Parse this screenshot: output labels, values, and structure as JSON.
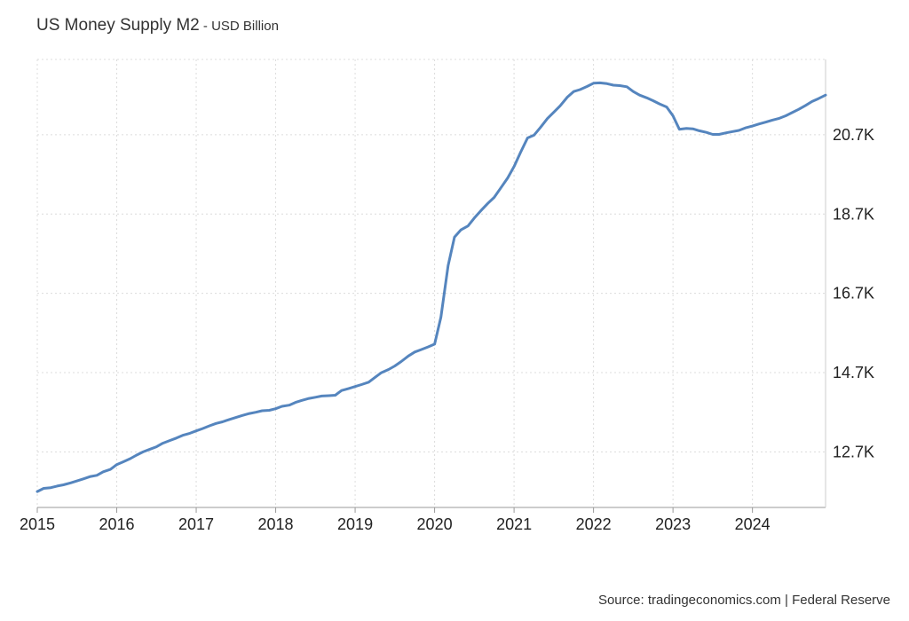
{
  "chart_data": {
    "type": "line",
    "title": "US Money Supply M2",
    "subtitle": "USD Billion",
    "title_separator": " - ",
    "source": "Source: tradingeconomics.com | Federal Reserve",
    "x_ticks": [
      "2015",
      "2016",
      "2017",
      "2018",
      "2019",
      "2020",
      "2021",
      "2022",
      "2023",
      "2024"
    ],
    "y_ticks": [
      "12.7K",
      "14.7K",
      "16.7K",
      "18.7K",
      "20.7K"
    ],
    "y_tick_values": [
      12700,
      14700,
      16700,
      18700,
      20700
    ],
    "xlim": [
      2015.0,
      2024.92
    ],
    "ylim": [
      11300,
      22600
    ],
    "grid": true,
    "y_axis_side": "right",
    "line_color": "#5585be",
    "series": [
      {
        "name": "",
        "x": [
          2015.0,
          2015.08,
          2015.17,
          2015.25,
          2015.33,
          2015.42,
          2015.5,
          2015.58,
          2015.67,
          2015.75,
          2015.83,
          2015.92,
          2016.0,
          2016.08,
          2016.17,
          2016.25,
          2016.33,
          2016.42,
          2016.5,
          2016.58,
          2016.67,
          2016.75,
          2016.83,
          2016.92,
          2017.0,
          2017.08,
          2017.17,
          2017.25,
          2017.33,
          2017.42,
          2017.5,
          2017.58,
          2017.67,
          2017.75,
          2017.83,
          2017.92,
          2018.0,
          2018.08,
          2018.17,
          2018.25,
          2018.33,
          2018.42,
          2018.5,
          2018.58,
          2018.67,
          2018.75,
          2018.83,
          2018.92,
          2019.0,
          2019.08,
          2019.17,
          2019.25,
          2019.33,
          2019.42,
          2019.5,
          2019.58,
          2019.67,
          2019.75,
          2019.83,
          2019.92,
          2020.0,
          2020.08,
          2020.17,
          2020.25,
          2020.33,
          2020.42,
          2020.5,
          2020.58,
          2020.67,
          2020.75,
          2020.83,
          2020.92,
          2021.0,
          2021.08,
          2021.17,
          2021.25,
          2021.33,
          2021.42,
          2021.5,
          2021.58,
          2021.67,
          2021.75,
          2021.83,
          2021.92,
          2022.0,
          2022.08,
          2022.17,
          2022.25,
          2022.33,
          2022.42,
          2022.5,
          2022.58,
          2022.67,
          2022.75,
          2022.83,
          2022.92,
          2023.0,
          2023.08,
          2023.17,
          2023.25,
          2023.33,
          2023.42,
          2023.5,
          2023.58,
          2023.67,
          2023.75,
          2023.83,
          2023.92,
          2024.0,
          2024.08,
          2024.17,
          2024.25,
          2024.33,
          2024.42,
          2024.5,
          2024.58,
          2024.67,
          2024.75,
          2024.83,
          2024.92
        ],
        "values": [
          11700,
          11780,
          11800,
          11840,
          11870,
          11920,
          11970,
          12020,
          12080,
          12110,
          12200,
          12260,
          12380,
          12450,
          12530,
          12620,
          12700,
          12770,
          12830,
          12920,
          12990,
          13050,
          13120,
          13170,
          13230,
          13290,
          13360,
          13420,
          13460,
          13520,
          13570,
          13620,
          13670,
          13700,
          13740,
          13750,
          13790,
          13850,
          13880,
          13950,
          14000,
          14050,
          14080,
          14110,
          14120,
          14130,
          14250,
          14300,
          14350,
          14400,
          14460,
          14580,
          14700,
          14780,
          14870,
          14980,
          15120,
          15220,
          15280,
          15350,
          15420,
          16100,
          17400,
          18120,
          18300,
          18400,
          18600,
          18780,
          18970,
          19120,
          19350,
          19610,
          19900,
          20250,
          20620,
          20690,
          20880,
          21110,
          21270,
          21430,
          21650,
          21790,
          21840,
          21920,
          22000,
          22010,
          21990,
          21950,
          21940,
          21910,
          21790,
          21700,
          21630,
          21560,
          21480,
          21400,
          21180,
          20840,
          20860,
          20850,
          20800,
          20760,
          20710,
          20710,
          20750,
          20780,
          20810,
          20880,
          20920,
          20970,
          21020,
          21070,
          21110,
          21180,
          21260,
          21340,
          21440,
          21540,
          21610,
          21700
        ]
      }
    ]
  }
}
